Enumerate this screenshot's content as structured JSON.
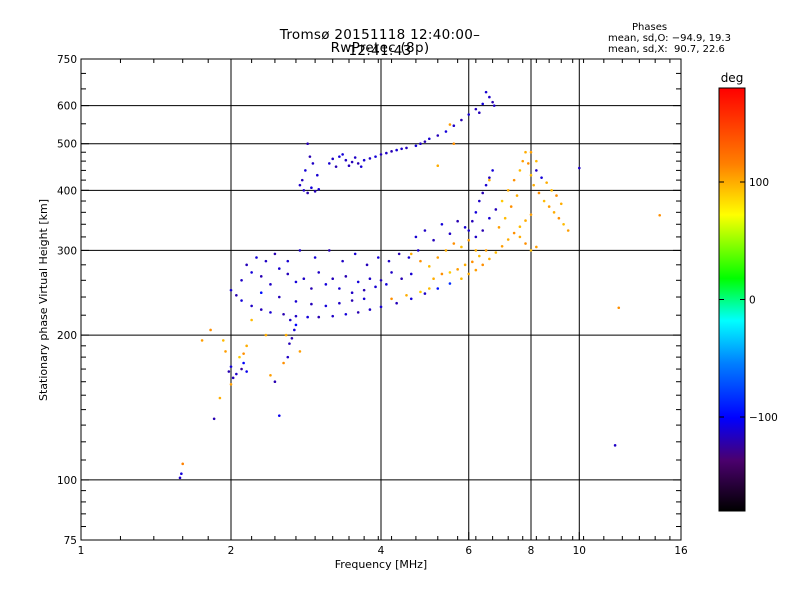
{
  "title": "Tromsø 20151118 12:40:00–12:41:43",
  "subtitle": "RwPretec (8p)",
  "info": {
    "heading": "Phases",
    "o_stats": "mean, sd,O: −94.9, 19.3",
    "x_stats": "mean, sd,X:  90.7, 22.6"
  },
  "colorbar": {
    "unit": "deg",
    "ticks": [
      {
        "label": "100",
        "value": 100
      },
      {
        "label": "0",
        "value": 0
      },
      {
        "label": "−100",
        "value": -100
      }
    ],
    "range": [
      -180,
      180
    ]
  },
  "chart_data": {
    "type": "scatter",
    "title": "Tromsø 20151118 12:40:00–12:41:43",
    "subtitle": "RwPretec (8p)",
    "xlabel": "Frequency [MHz]",
    "ylabel": "Stationary phase Virtual Height [km]",
    "x_scale": "log",
    "y_scale": "log",
    "xlim": [
      1,
      16
    ],
    "ylim": [
      75,
      750
    ],
    "x_ticks": [
      {
        "label": "1",
        "value": 1
      },
      {
        "label": "2",
        "value": 2
      },
      {
        "label": "4",
        "value": 4
      },
      {
        "label": "6",
        "value": 6
      },
      {
        "label": "8",
        "value": 8
      },
      {
        "label": "10",
        "value": 10
      },
      {
        "label": "16",
        "value": 16
      }
    ],
    "y_ticks": [
      {
        "label": "750",
        "value": 750
      },
      {
        "label": "600",
        "value": 600
      },
      {
        "label": "500",
        "value": 500
      },
      {
        "label": "400",
        "value": 400
      },
      {
        "label": "300",
        "value": 300
      },
      {
        "label": "200",
        "value": 200
      },
      {
        "label": "100",
        "value": 100
      },
      {
        "label": "75",
        "value": 75
      }
    ],
    "x_gridlines": [
      2,
      4,
      6,
      8,
      10
    ],
    "y_gridlines": [
      100,
      200,
      300,
      400,
      500,
      600
    ],
    "grid": true,
    "color_quantity": "phase (deg)",
    "points": [
      [
        1.58,
        101,
        -115
      ],
      [
        1.59,
        103,
        -110
      ],
      [
        1.6,
        108,
        115
      ],
      [
        1.85,
        134,
        -120
      ],
      [
        1.9,
        148,
        100
      ],
      [
        1.82,
        205,
        110
      ],
      [
        1.98,
        168,
        -120
      ],
      [
        2.0,
        172,
        -110
      ],
      [
        2.05,
        166,
        -115
      ],
      [
        2.1,
        170,
        -125
      ],
      [
        2.15,
        168,
        -105
      ],
      [
        2.12,
        175,
        -100
      ],
      [
        2.08,
        180,
        90
      ],
      [
        2.02,
        163,
        -118
      ],
      [
        1.95,
        185,
        105
      ],
      [
        1.93,
        195,
        95
      ],
      [
        2.15,
        190,
        100
      ],
      [
        2.12,
        183,
        110
      ],
      [
        2.45,
        160,
        -120
      ],
      [
        2.4,
        165,
        105
      ],
      [
        2.5,
        136,
        -105
      ],
      [
        2.55,
        175,
        110
      ],
      [
        2.6,
        180,
        -115
      ],
      [
        2.62,
        192,
        -118
      ],
      [
        2.65,
        197,
        -120
      ],
      [
        2.68,
        205,
        -112
      ],
      [
        2.7,
        210,
        -100
      ],
      [
        2.75,
        185,
        105
      ],
      [
        2.58,
        200,
        100
      ],
      [
        2.63,
        215,
        -115
      ],
      [
        2.0,
        248,
        -112
      ],
      [
        2.05,
        242,
        -120
      ],
      [
        2.1,
        236,
        -110
      ],
      [
        2.2,
        230,
        -115
      ],
      [
        2.3,
        226,
        -118
      ],
      [
        2.4,
        223,
        -112
      ],
      [
        2.55,
        221,
        -120
      ],
      [
        2.7,
        219,
        -115
      ],
      [
        2.85,
        218,
        -110
      ],
      [
        3.0,
        218,
        -120
      ],
      [
        3.2,
        219,
        -115
      ],
      [
        3.4,
        221,
        -110
      ],
      [
        3.6,
        223,
        -120
      ],
      [
        3.8,
        226,
        -115
      ],
      [
        4.0,
        229,
        -112
      ],
      [
        4.3,
        233,
        -118
      ],
      [
        4.6,
        238,
        -110
      ],
      [
        4.9,
        244,
        -115
      ],
      [
        5.2,
        250,
        -95
      ],
      [
        5.5,
        256,
        -85
      ],
      [
        5.8,
        262,
        95
      ],
      [
        6.0,
        268,
        100
      ],
      [
        6.2,
        273,
        105
      ],
      [
        6.4,
        280,
        110
      ],
      [
        6.6,
        288,
        100
      ],
      [
        6.8,
        297,
        95
      ],
      [
        7.0,
        306,
        105
      ],
      [
        7.2,
        316,
        100
      ],
      [
        7.4,
        326,
        110
      ],
      [
        7.6,
        336,
        95
      ],
      [
        7.8,
        346,
        100
      ],
      [
        8.0,
        356,
        105
      ],
      [
        5.1,
        262,
        100
      ],
      [
        5.3,
        268,
        110
      ],
      [
        5.5,
        270,
        90
      ],
      [
        5.7,
        274,
        105
      ],
      [
        5.9,
        280,
        100
      ],
      [
        6.1,
        284,
        110
      ],
      [
        6.3,
        292,
        95
      ],
      [
        6.5,
        300,
        105
      ],
      [
        5.0,
        250,
        95
      ],
      [
        4.8,
        246,
        90
      ],
      [
        4.5,
        242,
        100
      ],
      [
        4.2,
        238,
        110
      ],
      [
        2.1,
        260,
        -115
      ],
      [
        2.2,
        270,
        -110
      ],
      [
        2.3,
        265,
        -120
      ],
      [
        2.4,
        255,
        -115
      ],
      [
        2.5,
        275,
        -112
      ],
      [
        2.6,
        268,
        -118
      ],
      [
        2.7,
        258,
        -110
      ],
      [
        2.8,
        262,
        -115
      ],
      [
        2.9,
        250,
        -120
      ],
      [
        3.0,
        270,
        -115
      ],
      [
        3.1,
        255,
        -110
      ],
      [
        3.2,
        262,
        -118
      ],
      [
        3.3,
        250,
        -112
      ],
      [
        3.4,
        265,
        -120
      ],
      [
        3.5,
        245,
        -115
      ],
      [
        3.6,
        258,
        -110
      ],
      [
        3.7,
        248,
        -120
      ],
      [
        3.8,
        262,
        -115
      ],
      [
        3.9,
        252,
        -112
      ],
      [
        4.0,
        260,
        -118
      ],
      [
        4.1,
        255,
        -110
      ],
      [
        4.2,
        270,
        -115
      ],
      [
        4.4,
        262,
        -120
      ],
      [
        4.6,
        268,
        -112
      ],
      [
        2.15,
        280,
        -118
      ],
      [
        2.25,
        290,
        -110
      ],
      [
        2.35,
        285,
        -115
      ],
      [
        2.45,
        295,
        -120
      ],
      [
        2.6,
        285,
        -112
      ],
      [
        2.75,
        300,
        -115
      ],
      [
        2.95,
        290,
        -110
      ],
      [
        3.15,
        300,
        -120
      ],
      [
        3.35,
        285,
        -115
      ],
      [
        3.55,
        295,
        -112
      ],
      [
        3.75,
        280,
        -118
      ],
      [
        3.95,
        290,
        -110
      ],
      [
        4.15,
        285,
        -115
      ],
      [
        4.35,
        295,
        -120
      ],
      [
        4.55,
        290,
        -112
      ],
      [
        4.75,
        300,
        -115
      ],
      [
        2.3,
        245,
        -95
      ],
      [
        2.5,
        240,
        -118
      ],
      [
        2.7,
        235,
        -112
      ],
      [
        2.9,
        232,
        -118
      ],
      [
        3.1,
        230,
        -110
      ],
      [
        3.3,
        233,
        -115
      ],
      [
        3.5,
        236,
        -120
      ],
      [
        3.7,
        238,
        -112
      ],
      [
        2.8,
        400,
        -115
      ],
      [
        2.85,
        395,
        -120
      ],
      [
        2.9,
        405,
        -110
      ],
      [
        2.95,
        398,
        -118
      ],
      [
        3.0,
        402,
        -112
      ],
      [
        2.75,
        410,
        -115
      ],
      [
        2.78,
        420,
        -118
      ],
      [
        2.82,
        440,
        -110
      ],
      [
        2.88,
        470,
        -120
      ],
      [
        2.92,
        455,
        -115
      ],
      [
        2.98,
        430,
        -112
      ],
      [
        2.85,
        500,
        -120
      ],
      [
        3.3,
        470,
        -110
      ],
      [
        3.4,
        462,
        -115
      ],
      [
        3.5,
        458,
        -118
      ],
      [
        3.6,
        455,
        -120
      ],
      [
        3.7,
        462,
        -112
      ],
      [
        3.8,
        466,
        -115
      ],
      [
        3.9,
        470,
        -110
      ],
      [
        4.0,
        475,
        -118
      ],
      [
        4.1,
        478,
        -115
      ],
      [
        4.2,
        482,
        -120
      ],
      [
        4.3,
        485,
        -112
      ],
      [
        4.4,
        488,
        -115
      ],
      [
        4.5,
        490,
        -118
      ],
      [
        3.2,
        465,
        -115
      ],
      [
        3.15,
        455,
        -112
      ],
      [
        3.25,
        448,
        -120
      ],
      [
        3.35,
        475,
        -110
      ],
      [
        3.45,
        450,
        -118
      ],
      [
        3.55,
        468,
        -115
      ],
      [
        3.65,
        448,
        -112
      ],
      [
        4.7,
        495,
        -110
      ],
      [
        4.8,
        500,
        -115
      ],
      [
        4.9,
        505,
        -120
      ],
      [
        5.0,
        512,
        -112
      ],
      [
        5.2,
        520,
        -118
      ],
      [
        5.4,
        530,
        -110
      ],
      [
        5.6,
        545,
        -115
      ],
      [
        5.8,
        560,
        -120
      ],
      [
        6.0,
        575,
        -112
      ],
      [
        6.2,
        590,
        -118
      ],
      [
        6.4,
        605,
        -110
      ],
      [
        6.6,
        625,
        -115
      ],
      [
        6.7,
        610,
        -120
      ],
      [
        6.5,
        640,
        -112
      ],
      [
        6.3,
        580,
        -118
      ],
      [
        5.5,
        548,
        105
      ],
      [
        6.0,
        330,
        -112
      ],
      [
        6.1,
        345,
        -118
      ],
      [
        6.2,
        360,
        -110
      ],
      [
        6.3,
        380,
        -115
      ],
      [
        6.4,
        395,
        -120
      ],
      [
        6.5,
        410,
        -112
      ],
      [
        6.6,
        425,
        -118
      ],
      [
        6.7,
        440,
        -110
      ],
      [
        6.2,
        320,
        -115
      ],
      [
        6.4,
        330,
        -120
      ],
      [
        6.6,
        350,
        -112
      ],
      [
        6.8,
        365,
        -118
      ],
      [
        7.0,
        380,
        90
      ],
      [
        7.2,
        400,
        100
      ],
      [
        7.4,
        420,
        110
      ],
      [
        7.6,
        440,
        95
      ],
      [
        7.7,
        460,
        105
      ],
      [
        7.8,
        480,
        100
      ],
      [
        7.9,
        455,
        110
      ],
      [
        8.0,
        430,
        95
      ],
      [
        7.5,
        390,
        100
      ],
      [
        7.3,
        370,
        110
      ],
      [
        7.1,
        350,
        95
      ],
      [
        6.9,
        335,
        105
      ],
      [
        8.1,
        410,
        100
      ],
      [
        8.3,
        395,
        110
      ],
      [
        8.5,
        380,
        95
      ],
      [
        8.7,
        370,
        105
      ],
      [
        8.9,
        360,
        100
      ],
      [
        9.1,
        350,
        110
      ],
      [
        9.3,
        340,
        95
      ],
      [
        9.5,
        330,
        105
      ],
      [
        8.2,
        440,
        -115
      ],
      [
        8.4,
        425,
        -110
      ],
      [
        8.6,
        415,
        100
      ],
      [
        8.8,
        400,
        95
      ],
      [
        9.0,
        390,
        110
      ],
      [
        9.2,
        375,
        100
      ],
      [
        8.0,
        480,
        105
      ],
      [
        8.2,
        460,
        95
      ],
      [
        7.6,
        320,
        100
      ],
      [
        7.8,
        310,
        110
      ],
      [
        8.0,
        300,
        95
      ],
      [
        8.2,
        305,
        105
      ],
      [
        6.6,
        420,
        100
      ],
      [
        6.75,
        600,
        -115
      ],
      [
        10.0,
        445,
        -115
      ],
      [
        14.5,
        355,
        110
      ],
      [
        12.0,
        228,
        110
      ],
      [
        11.8,
        118,
        -115
      ],
      [
        5.2,
        450,
        100
      ],
      [
        5.6,
        500,
        110
      ],
      [
        1.75,
        195,
        105
      ],
      [
        2.2,
        215,
        95
      ],
      [
        2.35,
        200,
        100
      ],
      [
        2.0,
        158,
        105
      ],
      [
        4.7,
        320,
        -112
      ],
      [
        4.9,
        330,
        -115
      ],
      [
        5.1,
        315,
        -118
      ],
      [
        5.3,
        340,
        -110
      ],
      [
        5.5,
        325,
        -115
      ],
      [
        5.7,
        345,
        -120
      ],
      [
        5.9,
        335,
        -112
      ],
      [
        4.6,
        295,
        100
      ],
      [
        4.8,
        285,
        110
      ],
      [
        5.0,
        278,
        95
      ],
      [
        5.2,
        290,
        105
      ],
      [
        5.4,
        300,
        100
      ],
      [
        5.6,
        310,
        110
      ],
      [
        5.8,
        305,
        95
      ],
      [
        6.0,
        315,
        105
      ],
      [
        6.2,
        300,
        100
      ]
    ]
  }
}
